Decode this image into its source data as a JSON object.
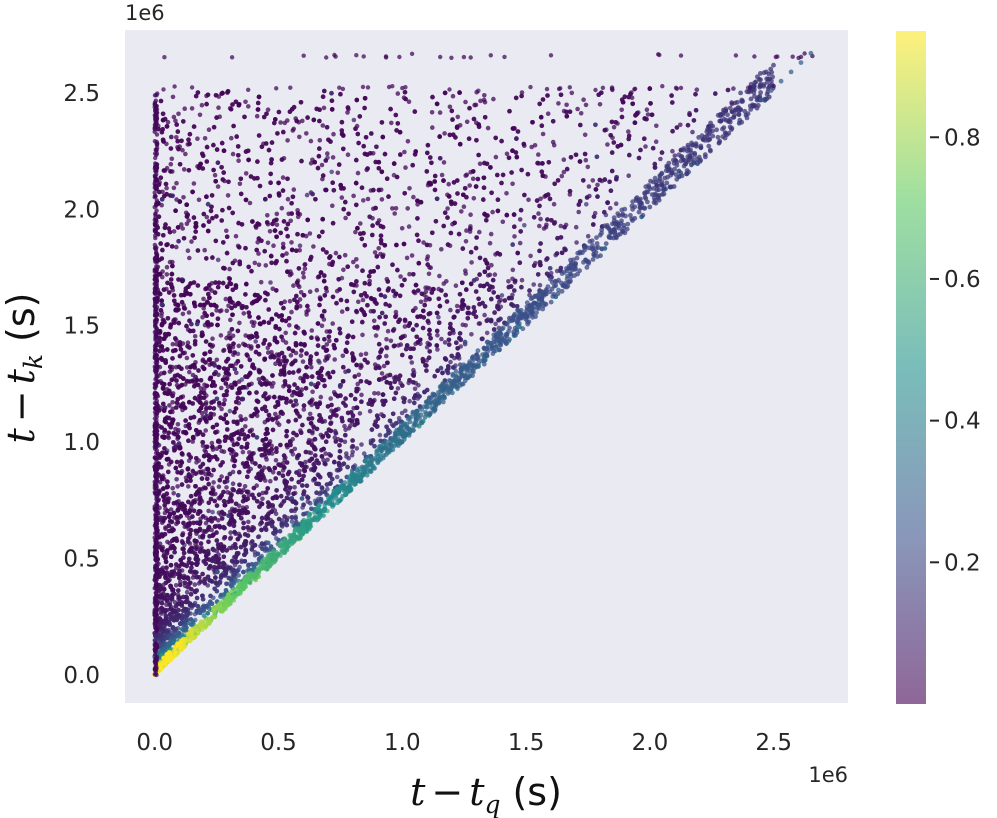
{
  "chart_data": {
    "type": "scatter",
    "xlabel": {
      "var": "t",
      "minus": "−",
      "sub_var": "t",
      "sub": "q",
      "unit": "(s)"
    },
    "ylabel": {
      "var": "t",
      "minus": "−",
      "sub_var": "t",
      "sub": "k",
      "unit": "(s)"
    },
    "x_multiplier": "1e6",
    "y_multiplier": "1e6",
    "xlim": [
      -0.12,
      2.8
    ],
    "ylim": [
      -0.12,
      2.77
    ],
    "xticks": [
      0.0,
      0.5,
      1.0,
      1.5,
      2.0,
      2.5
    ],
    "xtick_labels": [
      "0.0",
      "0.5",
      "1.0",
      "1.5",
      "2.0",
      "2.5"
    ],
    "yticks": [
      0.0,
      0.5,
      1.0,
      1.5,
      2.0,
      2.5
    ],
    "ytick_labels": [
      "0.0",
      "0.5",
      "1.0",
      "1.5",
      "2.0",
      "2.5"
    ],
    "grid": false,
    "plot_background": "#eaeaf2",
    "colormap": "viridis",
    "colorbar": {
      "range": [
        0.0,
        0.95
      ],
      "ticks": [
        0.2,
        0.4,
        0.6,
        0.8
      ],
      "tick_labels": [
        "0.2",
        "0.4",
        "0.6",
        "0.8"
      ],
      "placement": "right"
    },
    "distribution": {
      "description_region": "points fill the triangle where y >= x, from x = 0 to x ≈ 2.65 and y up to ≈ 2.65",
      "dense_edge": "values highest (≈0.95) along diagonal y = x near the origin, decreasing with distance",
      "sparse_top_rows": [
        2.52,
        2.66
      ],
      "max_point": [
        2.66,
        2.66
      ]
    }
  }
}
